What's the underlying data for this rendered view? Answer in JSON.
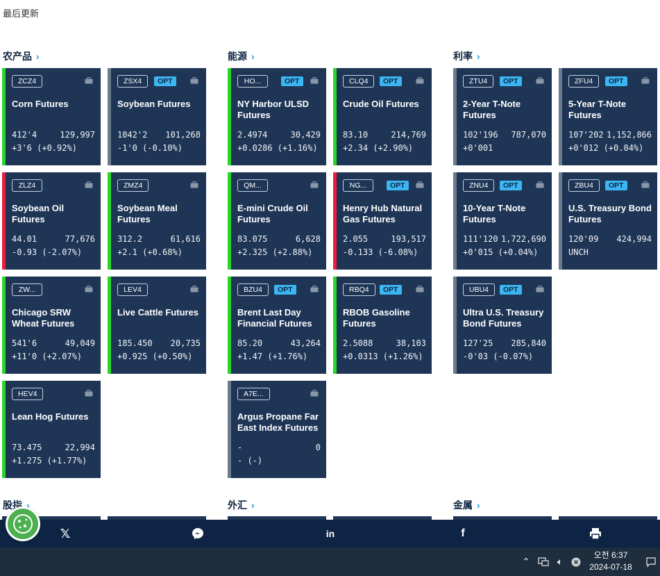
{
  "header": {
    "last_updated": "最后更新"
  },
  "categories": {
    "agri": "农产品",
    "energy": "能源",
    "rates": "利率",
    "equity": "股指",
    "fx": "外汇",
    "metals": "金属"
  },
  "cards": [
    {
      "code": "ZCZ4",
      "opt": "",
      "name": "Corn Futures",
      "price": "412'4",
      "volume": "129,997",
      "change": "+3'6 (+0.92%)",
      "trend": "up"
    },
    {
      "code": "ZSX4",
      "opt": "OPT",
      "name": "Soybean Futures",
      "price": "1042'2",
      "volume": "101,268",
      "change": "-1'0 (-0.10%)",
      "trend": "flat"
    },
    {
      "code": "ZLZ4",
      "opt": "",
      "name": "Soybean Oil Futures",
      "price": "44.01",
      "volume": "77,676",
      "change": "-0.93 (-2.07%)",
      "trend": "down"
    },
    {
      "code": "ZMZ4",
      "opt": "",
      "name": "Soybean Meal Futures",
      "price": "312.2",
      "volume": "61,616",
      "change": "+2.1 (+0.68%)",
      "trend": "up"
    },
    {
      "code": "ZW...",
      "opt": "",
      "name": "Chicago SRW Wheat Futures",
      "price": "541'6",
      "volume": "49,049",
      "change": "+11'0 (+2.07%)",
      "trend": "up"
    },
    {
      "code": "LEV4",
      "opt": "",
      "name": "Live Cattle Futures",
      "price": "185.450",
      "volume": "20,735",
      "change": "+0.925 (+0.50%)",
      "trend": "up"
    },
    {
      "code": "HEV4",
      "opt": "",
      "name": "Lean Hog Futures",
      "price": "73.475",
      "volume": "22,994",
      "change": "+1.275 (+1.77%)",
      "trend": "up"
    },
    {
      "code": "HO...",
      "opt": "OPT",
      "name": "NY Harbor ULSD Futures",
      "price": "2.4974",
      "volume": "30,429",
      "change": "+0.0286 (+1.16%)",
      "trend": "up"
    },
    {
      "code": "CLQ4",
      "opt": "OPT",
      "name": "Crude Oil Futures",
      "price": "83.10",
      "volume": "214,769",
      "change": "+2.34 (+2.90%)",
      "trend": "up"
    },
    {
      "code": "QM...",
      "opt": "",
      "name": "E-mini Crude Oil Futures",
      "price": "83.075",
      "volume": "6,628",
      "change": "+2.325 (+2.88%)",
      "trend": "up"
    },
    {
      "code": "NG...",
      "opt": "OPT",
      "name": "Henry Hub Natural Gas Futures",
      "price": "2.055",
      "volume": "193,517",
      "change": "-0.133 (-6.08%)",
      "trend": "down"
    },
    {
      "code": "BZU4",
      "opt": "OPT",
      "name": "Brent Last Day Financial Futures",
      "price": "85.20",
      "volume": "43,264",
      "change": "+1.47 (+1.76%)",
      "trend": "up"
    },
    {
      "code": "RBQ4",
      "opt": "OPT",
      "name": "RBOB Gasoline Futures",
      "price": "2.5088",
      "volume": "38,103",
      "change": "+0.0313 (+1.26%)",
      "trend": "up"
    },
    {
      "code": "A7E...",
      "opt": "",
      "name": "Argus Propane Far East Index Futures",
      "price": "-",
      "volume": "0",
      "change": "- (-)",
      "trend": "flat"
    },
    {
      "code": "ZTU4",
      "opt": "OPT",
      "name": "2-Year T-Note Futures",
      "price": "102'196",
      "volume": "787,070",
      "change": "+0'001",
      "trend": "flat"
    },
    {
      "code": "ZFU4",
      "opt": "OPT",
      "name": "5-Year T-Note Futures",
      "price": "107'202",
      "volume": "1,152,866",
      "change": "+0'012 (+0.04%)",
      "trend": "flat"
    },
    {
      "code": "ZNU4",
      "opt": "OPT",
      "name": "10-Year T-Note Futures",
      "price": "111'120",
      "volume": "1,722,690",
      "change": "+0'015 (+0.04%)",
      "trend": "flat"
    },
    {
      "code": "ZBU4",
      "opt": "OPT",
      "name": "U.S. Treasury Bond Futures",
      "price": "120'09",
      "volume": "424,994",
      "change": "UNCH",
      "trend": "flat"
    },
    {
      "code": "UBU4",
      "opt": "OPT",
      "name": "Ultra U.S. Treasury Bond Futures",
      "price": "127'25",
      "volume": "285,840",
      "change": "-0'03 (-0.07%)",
      "trend": "flat"
    }
  ],
  "share_bar": {
    "icons": [
      "x-icon",
      "messenger-icon",
      "linkedin-icon",
      "facebook-icon",
      "print-icon"
    ],
    "x_label": "𝕏",
    "linkedin_label": "in",
    "facebook_label": "f"
  },
  "taskbar": {
    "time": "오전 6:37",
    "date": "2024-07-18"
  },
  "colors": {
    "card_bg": "#1e3556",
    "up": "#28d62a",
    "down": "#ec1c3a",
    "flat": "#6b7a8c",
    "opt": "#3cb6f2"
  }
}
